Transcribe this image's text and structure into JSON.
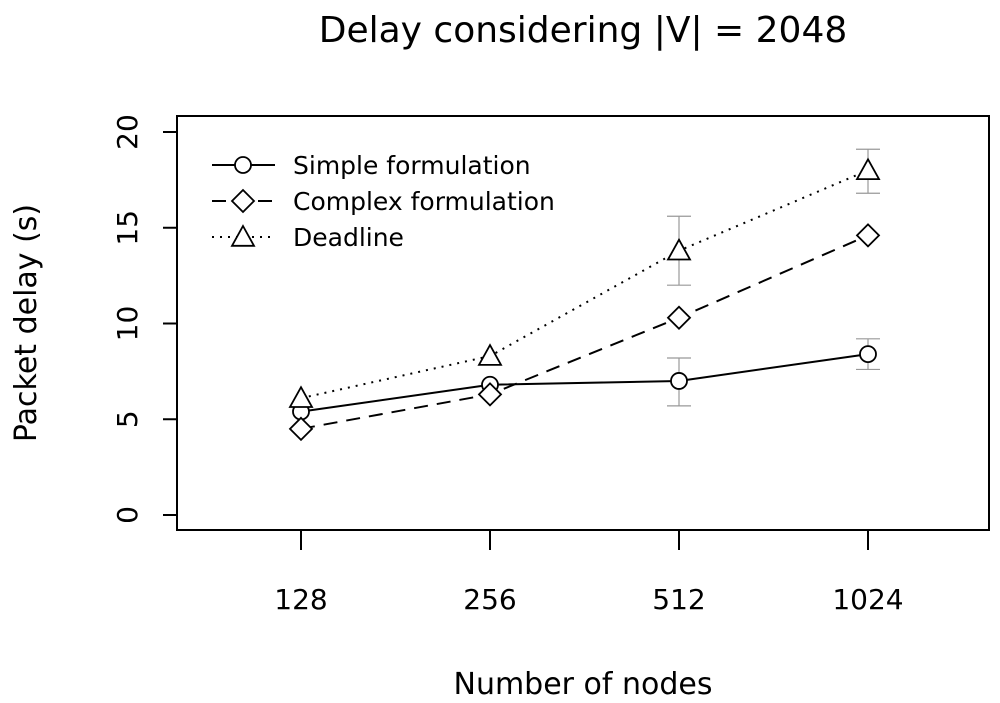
{
  "chart_data": {
    "type": "line",
    "title": "Delay considering |V| = 2048",
    "xlabel": "Number of nodes",
    "ylabel": "Packet delay (s)",
    "categories": [
      "128",
      "256",
      "512",
      "1024"
    ],
    "ylim": [
      0,
      20
    ],
    "yticks": [
      "0",
      "5",
      "10",
      "15",
      "20"
    ],
    "grid": false,
    "legend_position": "top-left",
    "series": [
      {
        "name": "Simple formulation",
        "values": [
          5.4,
          6.8,
          7.0,
          8.4
        ],
        "err_low": [
          5.4,
          6.8,
          5.7,
          7.6
        ],
        "err_high": [
          5.4,
          6.8,
          8.2,
          9.2
        ],
        "marker": "circle",
        "dash": "solid"
      },
      {
        "name": "Complex formulation",
        "values": [
          4.5,
          6.3,
          10.3,
          14.6
        ],
        "err_low": [
          4.5,
          6.3,
          10.3,
          14.6
        ],
        "err_high": [
          4.5,
          6.3,
          10.3,
          14.6
        ],
        "marker": "diamond",
        "dash": "dashed"
      },
      {
        "name": "Deadline",
        "values": [
          6.1,
          8.3,
          13.8,
          18.0
        ],
        "err_low": [
          6.1,
          8.3,
          12.0,
          16.8
        ],
        "err_high": [
          6.1,
          8.3,
          15.6,
          19.1
        ],
        "marker": "triangle",
        "dash": "dotted"
      }
    ],
    "colors": {
      "line": "#000000",
      "errorbar": "#999999"
    }
  }
}
